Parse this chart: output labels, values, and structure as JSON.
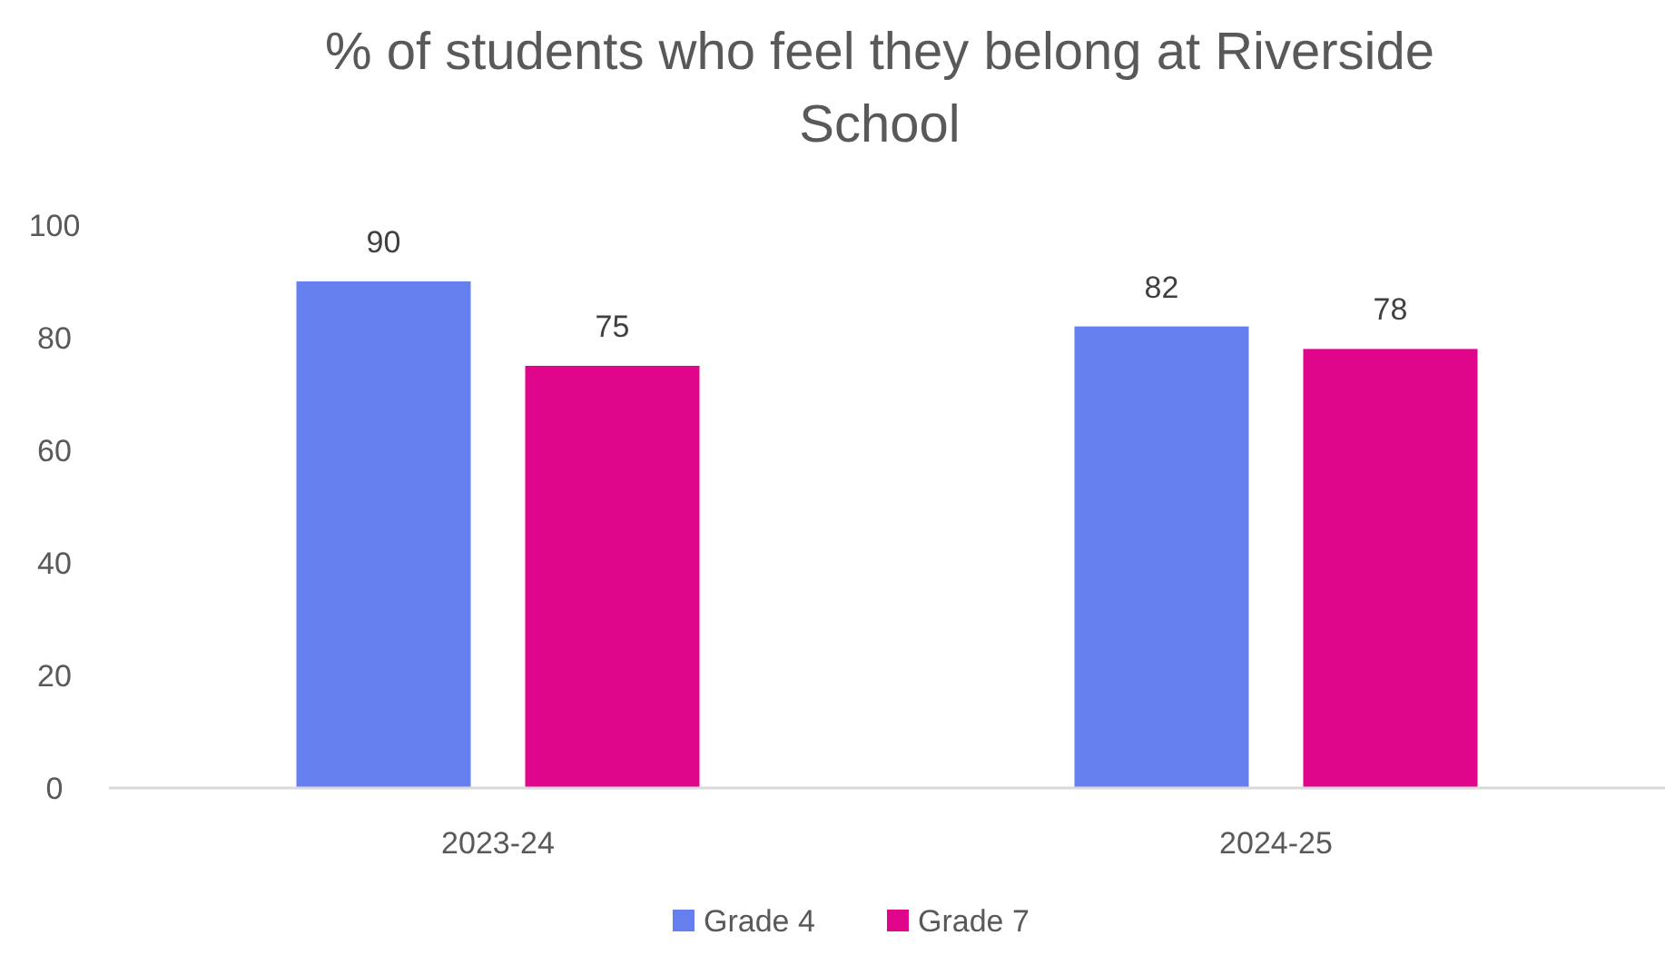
{
  "chart_data": {
    "type": "bar",
    "title": "% of students who feel they belong at Riverside School",
    "categories": [
      "2023-24",
      "2024-25"
    ],
    "series": [
      {
        "name": "Grade 4",
        "color": "#6580ee",
        "values": [
          90,
          82
        ]
      },
      {
        "name": "Grade 7",
        "color": "#e0068c",
        "values": [
          75,
          78
        ]
      }
    ],
    "ylim": [
      0,
      100
    ],
    "yticks": [
      0,
      20,
      40,
      60,
      80,
      100
    ],
    "grid": false,
    "legend": "bottom",
    "data_labels": true
  }
}
